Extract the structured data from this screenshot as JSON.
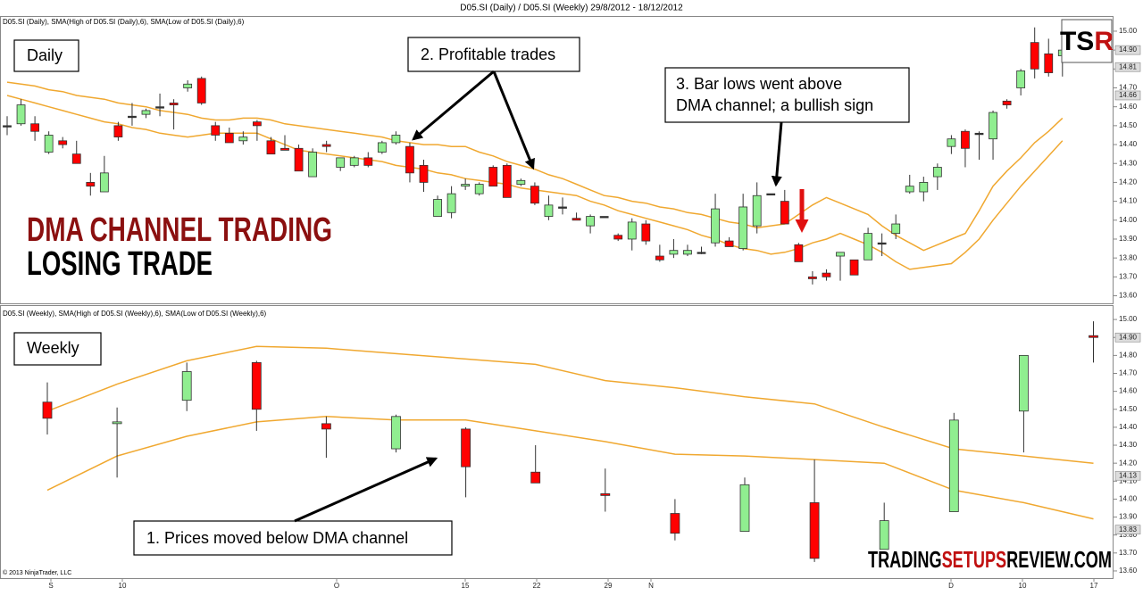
{
  "header": {
    "title": "D05.SI (Daily) / D05.SI (Weekly)  29/8/2012 - 18/12/2012"
  },
  "chart_data": [
    {
      "type": "candlestick",
      "title": "D05.SI (Daily), SMA(High of D05.SI (Daily),6), SMA(Low of D05.SI (Daily),6)",
      "label": "Daily",
      "annotations": [
        [
          "2. Profitable trades"
        ],
        [
          "3. Bar lows went above",
          "DMA channel; a bullish sign"
        ]
      ],
      "up_color": "#90ee90",
      "down_color": "#ff0000",
      "line_color": "#f0a830",
      "ylim": [
        13.56,
        15.08
      ],
      "yticks": [
        {
          "value": 13.6,
          "label": "13.60"
        },
        {
          "value": 13.7,
          "label": "13.70"
        },
        {
          "value": 13.8,
          "label": "13.80"
        },
        {
          "value": 13.9,
          "label": "13.90"
        },
        {
          "value": 14,
          "label": "14.00"
        },
        {
          "value": 14.1,
          "label": "14.10"
        },
        {
          "value": 14.2,
          "label": "14.20"
        },
        {
          "value": 14.3,
          "label": "14.30"
        },
        {
          "value": 14.4,
          "label": "14.40"
        },
        {
          "value": 14.5,
          "label": "14.50"
        },
        {
          "value": 14.6,
          "label": "14.60"
        },
        {
          "value": 14.7,
          "label": "14.70"
        },
        {
          "value": 14.8,
          "label": "14.80"
        },
        {
          "value": 14.9,
          "label": "14.90"
        },
        {
          "value": 15,
          "label": "15.00"
        }
      ],
      "price_tags": [
        {
          "value": 14.9,
          "label": "14.90"
        },
        {
          "value": 14.81,
          "label": "14.81"
        },
        {
          "value": 14.66,
          "label": "14.66"
        }
      ],
      "open": [
        14.5,
        14.51,
        14.51,
        14.36,
        14.42,
        14.35,
        14.2,
        14.15,
        14.5,
        14.55,
        14.56,
        14.6,
        14.62,
        14.7,
        14.75,
        14.5,
        14.46,
        14.42,
        14.52,
        14.42,
        14.38,
        14.38,
        14.23,
        14.4,
        14.28,
        14.29,
        14.33,
        14.36,
        14.41,
        14.39,
        14.29,
        14.02,
        14.04,
        14.18,
        14.14,
        14.28,
        14.29,
        14.19,
        14.18,
        14.02,
        14.07,
        14.01,
        13.97,
        14.02,
        13.92,
        13.9,
        13.98,
        13.81,
        13.82,
        13.82,
        13.83,
        13.88,
        13.89,
        13.85,
        13.97,
        14.14,
        14.1,
        13.87,
        13.7,
        13.72,
        13.81,
        13.79,
        13.79,
        13.88,
        13.93,
        14.15,
        14.15,
        14.23,
        14.39,
        14.47,
        14.46,
        14.43,
        14.63,
        14.7,
        14.94,
        14.88,
        14.87
      ],
      "high": [
        14.55,
        14.64,
        14.55,
        14.47,
        14.44,
        14.42,
        14.25,
        14.34,
        14.52,
        14.62,
        14.59,
        14.67,
        14.64,
        14.74,
        14.76,
        14.52,
        14.49,
        14.47,
        14.53,
        14.44,
        14.45,
        14.4,
        14.38,
        14.42,
        14.33,
        14.34,
        14.36,
        14.42,
        14.47,
        14.41,
        14.32,
        14.13,
        14.18,
        14.22,
        14.2,
        14.29,
        14.3,
        14.22,
        14.2,
        14.13,
        14.12,
        14.04,
        14.03,
        14.02,
        13.93,
        14.01,
        14.0,
        13.87,
        13.9,
        13.87,
        13.86,
        14.14,
        13.91,
        14.14,
        14.2,
        14.14,
        14.16,
        13.88,
        13.73,
        13.74,
        13.83,
        13.79,
        13.96,
        13.93,
        14.03,
        14.24,
        14.23,
        14.3,
        14.45,
        14.48,
        14.47,
        14.58,
        14.64,
        14.8,
        15.02,
        14.96,
        14.91
      ],
      "low": [
        14.45,
        14.5,
        14.42,
        14.35,
        14.38,
        14.3,
        14.13,
        14.15,
        14.42,
        14.5,
        14.54,
        14.55,
        14.48,
        14.68,
        14.61,
        14.42,
        14.41,
        14.4,
        14.42,
        14.35,
        14.37,
        14.26,
        14.23,
        14.36,
        14.26,
        14.28,
        14.28,
        14.35,
        14.4,
        14.2,
        14.15,
        14.02,
        14.01,
        14.16,
        14.13,
        14.18,
        14.12,
        14.18,
        14.08,
        14.0,
        14.03,
        14.0,
        13.93,
        14.02,
        13.89,
        13.84,
        13.87,
        13.78,
        13.8,
        13.81,
        13.82,
        13.86,
        13.86,
        13.84,
        13.93,
        14.14,
        13.98,
        13.78,
        13.66,
        13.68,
        13.68,
        13.71,
        13.79,
        13.81,
        13.9,
        14.14,
        14.1,
        14.16,
        14.35,
        14.28,
        14.32,
        14.32,
        14.59,
        14.66,
        14.75,
        14.76,
        14.76
      ],
      "close": [
        14.5,
        14.61,
        14.47,
        14.45,
        14.4,
        14.3,
        14.18,
        14.25,
        14.44,
        14.55,
        14.58,
        14.6,
        14.61,
        14.72,
        14.62,
        14.45,
        14.41,
        14.44,
        14.5,
        14.35,
        14.37,
        14.26,
        14.36,
        14.39,
        14.33,
        14.33,
        14.29,
        14.41,
        14.45,
        14.25,
        14.2,
        14.11,
        14.14,
        14.19,
        14.19,
        14.18,
        14.12,
        14.21,
        14.09,
        14.08,
        14.07,
        14.0,
        14.02,
        14.02,
        13.9,
        13.99,
        13.89,
        13.79,
        13.84,
        13.84,
        13.83,
        14.06,
        13.86,
        14.07,
        14.13,
        14.14,
        13.98,
        13.78,
        13.69,
        13.7,
        13.83,
        13.71,
        13.93,
        13.88,
        13.98,
        14.18,
        14.2,
        14.28,
        14.43,
        14.38,
        14.46,
        14.57,
        14.61,
        14.79,
        14.8,
        14.78,
        14.9
      ],
      "sma_lines": [
        {
          "values": [
            14.73,
            14.72,
            14.71,
            14.69,
            14.68,
            14.66,
            14.65,
            14.64,
            14.62,
            14.61,
            14.6,
            14.58,
            14.57,
            14.56,
            14.54,
            14.53,
            14.53,
            14.54,
            14.54,
            14.53,
            14.51,
            14.5,
            14.49,
            14.48,
            14.47,
            14.46,
            14.45,
            14.44,
            14.42,
            14.41,
            14.4,
            14.4,
            14.39,
            14.39,
            14.36,
            14.34,
            14.31,
            14.29,
            14.27,
            14.24,
            14.22,
            14.19,
            14.16,
            14.13,
            14.12,
            14.1,
            14.09,
            14.07,
            14.06,
            14.04,
            14.03,
            14.01,
            13.99,
            13.98,
            13.96,
            13.97,
            13.98,
            14.03,
            14.08,
            14.12,
            14.09,
            14.06,
            14.03,
            13.97,
            13.92,
            13.88,
            13.84,
            13.87,
            13.9,
            13.93,
            14.05,
            14.18,
            14.26,
            14.33,
            14.41,
            14.47,
            14.54
          ]
        },
        {
          "values": [
            14.66,
            14.64,
            14.62,
            14.6,
            14.58,
            14.56,
            14.54,
            14.52,
            14.51,
            14.49,
            14.48,
            14.46,
            14.45,
            14.44,
            14.45,
            14.46,
            14.46,
            14.46,
            14.46,
            14.43,
            14.4,
            14.37,
            14.36,
            14.35,
            14.34,
            14.33,
            14.32,
            14.31,
            14.29,
            14.28,
            14.27,
            14.25,
            14.24,
            14.22,
            14.21,
            14.2,
            14.19,
            14.17,
            14.16,
            14.15,
            14.14,
            14.13,
            14.1,
            14.08,
            14.05,
            14.03,
            14.01,
            13.99,
            13.97,
            13.95,
            13.92,
            13.9,
            13.87,
            13.85,
            13.84,
            13.82,
            13.83,
            13.85,
            13.88,
            13.9,
            13.93,
            13.9,
            13.87,
            13.83,
            13.78,
            13.74,
            13.75,
            13.76,
            13.77,
            13.83,
            13.9,
            14.0,
            14.09,
            14.18,
            14.26,
            14.34,
            14.42
          ]
        }
      ]
    },
    {
      "type": "candlestick",
      "title": "D05.SI (Weekly), SMA(High of D05.SI (Weekly),6), SMA(Low of D05.SI (Weekly),6)",
      "label": "Weekly",
      "annotations": [
        [
          "1. Prices moved below  DMA channel"
        ]
      ],
      "up_color": "#90ee90",
      "down_color": "#ff0000",
      "line_color": "#f0a830",
      "ylim": [
        13.56,
        15.08
      ],
      "yticks": [
        {
          "value": 13.6,
          "label": "13.60"
        },
        {
          "value": 13.7,
          "label": "13.70"
        },
        {
          "value": 13.8,
          "label": "13.80"
        },
        {
          "value": 13.9,
          "label": "13.90"
        },
        {
          "value": 14,
          "label": "14.00"
        },
        {
          "value": 14.1,
          "label": "14.10"
        },
        {
          "value": 14.2,
          "label": "14.20"
        },
        {
          "value": 14.3,
          "label": "14.30"
        },
        {
          "value": 14.4,
          "label": "14.40"
        },
        {
          "value": 14.5,
          "label": "14.50"
        },
        {
          "value": 14.6,
          "label": "14.60"
        },
        {
          "value": 14.7,
          "label": "14.70"
        },
        {
          "value": 14.8,
          "label": "14.80"
        },
        {
          "value": 14.9,
          "label": "14.90"
        },
        {
          "value": 15,
          "label": "15.00"
        }
      ],
      "price_tags": [
        {
          "value": 14.9,
          "label": "14.90"
        },
        {
          "value": 14.13,
          "label": "14.13"
        },
        {
          "value": 13.83,
          "label": "13.83"
        }
      ],
      "open": [
        14.54,
        14.42,
        14.55,
        14.76,
        14.42,
        14.28,
        14.39,
        14.15,
        14.03,
        13.92,
        13.82,
        13.98,
        13.72,
        13.93,
        14.49,
        14.91
      ],
      "high": [
        14.65,
        14.51,
        14.76,
        14.77,
        14.46,
        14.47,
        14.4,
        14.3,
        14.17,
        14.0,
        14.12,
        14.22,
        13.98,
        14.48,
        14.8,
        14.99
      ],
      "low": [
        14.36,
        14.12,
        14.49,
        14.38,
        14.23,
        14.26,
        14.01,
        14.09,
        13.93,
        13.77,
        13.82,
        13.65,
        13.72,
        13.93,
        14.26,
        14.76
      ],
      "close": [
        14.45,
        14.43,
        14.71,
        14.5,
        14.39,
        14.46,
        14.18,
        14.09,
        14.02,
        13.81,
        14.08,
        13.67,
        13.88,
        14.44,
        14.8,
        14.9
      ],
      "sma_lines": [
        {
          "values": [
            14.49,
            14.64,
            14.77,
            14.85,
            14.84,
            14.81,
            14.78,
            14.75,
            14.66,
            14.62,
            14.57,
            14.53,
            14.4,
            14.28,
            14.24,
            14.2
          ]
        },
        {
          "values": [
            14.05,
            14.24,
            14.35,
            14.43,
            14.46,
            14.44,
            14.44,
            14.38,
            14.32,
            14.25,
            14.24,
            14.22,
            14.2,
            14.05,
            13.98,
            13.89
          ]
        }
      ]
    }
  ],
  "x_axis_labels": [
    "S",
    "10",
    "O",
    "15",
    "22",
    "29",
    "N",
    "D",
    "10",
    "17"
  ],
  "overlay": {
    "headline": "DMA CHANNEL TRADING",
    "subline": "LOSING TRADE",
    "logo": [
      "TS",
      "R"
    ],
    "copyright": "© 2013 NinjaTrader, LLC",
    "brand": [
      "TRADING",
      "SETUPS",
      "REVIEW.COM"
    ]
  }
}
